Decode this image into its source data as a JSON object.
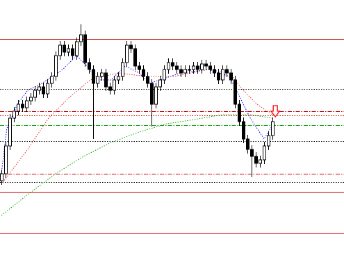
{
  "chart_data": {
    "type": "candlestick",
    "xlim": [
      -0.33,
      82.17
    ],
    "ylim": [
      0,
      400
    ],
    "up_color": "#ffffff",
    "down_color": "#000000",
    "wick_color": "#000000",
    "open": [
      140,
      150,
      190,
      230,
      240,
      250,
      245,
      255,
      260,
      270,
      275,
      265,
      280,
      290,
      320,
      335,
      325,
      330,
      320,
      340,
      350,
      310,
      300,
      280,
      290,
      295,
      275,
      270,
      285,
      290,
      310,
      335,
      330,
      305,
      300,
      290,
      280,
      250,
      275,
      285,
      300,
      310,
      305,
      300,
      295,
      300,
      300,
      305,
      300,
      308,
      305,
      300,
      295,
      285,
      300,
      295,
      285,
      250,
      225,
      200,
      185,
      175,
      165,
      170,
      190,
      205
    ],
    "high": [
      156,
      196,
      236,
      246,
      256,
      256,
      261,
      266,
      276,
      281,
      281,
      286,
      296,
      326,
      341,
      341,
      336,
      336,
      346,
      365,
      356,
      316,
      306,
      296,
      301,
      301,
      281,
      291,
      296,
      316,
      341,
      341,
      336,
      311,
      306,
      296,
      286,
      281,
      291,
      306,
      316,
      316,
      311,
      306,
      306,
      306,
      311,
      311,
      314,
      314,
      311,
      306,
      301,
      306,
      306,
      301,
      291,
      256,
      231,
      206,
      191,
      181,
      176,
      196,
      211,
      231
    ],
    "low": [
      134,
      144,
      184,
      224,
      234,
      239,
      239,
      249,
      254,
      264,
      259,
      259,
      274,
      284,
      314,
      319,
      319,
      314,
      314,
      334,
      304,
      294,
      200,
      274,
      284,
      269,
      264,
      264,
      279,
      284,
      304,
      324,
      299,
      294,
      284,
      274,
      218,
      244,
      269,
      279,
      294,
      299,
      294,
      289,
      289,
      294,
      294,
      294,
      294,
      299,
      294,
      289,
      279,
      279,
      289,
      279,
      244,
      219,
      194,
      179,
      145,
      159,
      159,
      164,
      184,
      199
    ],
    "close": [
      150,
      190,
      230,
      240,
      250,
      245,
      255,
      260,
      270,
      275,
      265,
      280,
      290,
      320,
      335,
      325,
      330,
      320,
      340,
      350,
      310,
      300,
      280,
      290,
      295,
      275,
      270,
      285,
      290,
      310,
      335,
      330,
      305,
      300,
      290,
      280,
      250,
      275,
      285,
      300,
      310,
      305,
      300,
      295,
      300,
      300,
      305,
      300,
      308,
      305,
      300,
      295,
      285,
      300,
      295,
      285,
      250,
      225,
      200,
      185,
      175,
      165,
      170,
      190,
      205,
      225
    ],
    "series": [
      {
        "color": "#0000ff",
        "style": "dotted",
        "x": [
          0,
          1.3,
          3.8,
          6.3,
          9.7,
          14.7,
          18,
          20.5,
          23,
          26.3,
          29.7,
          33,
          35.5,
          38,
          43,
          49.7,
          54.7,
          57.2,
          59.7,
          63,
          65
        ],
        "values": [
          150,
          215,
          250,
          270,
          280,
          300,
          320,
          305,
          285,
          285,
          305,
          295,
          280,
          285,
          295,
          300,
          290,
          260,
          230,
          200,
          220
        ]
      },
      {
        "color": "#e03030",
        "style": "dotted",
        "x": [
          0,
          6.3,
          11.3,
          16.3,
          21.3,
          28,
          34.7,
          41.3,
          49.7,
          54.7,
          58,
          61.3,
          65
        ],
        "values": [
          135,
          185,
          230,
          260,
          285,
          295,
          290,
          290,
          300,
          295,
          270,
          250,
          235
        ]
      },
      {
        "color": "#00a000",
        "style": "dotted",
        "x": [
          0,
          6.3,
          13,
          19.7,
          26.3,
          33,
          39.7,
          46.3,
          53,
          59.7,
          65
        ],
        "values": [
          90,
          120,
          150,
          175,
          195,
          210,
          222,
          228,
          235,
          235,
          230
        ]
      }
    ],
    "levels": [
      {
        "value": 344,
        "color": "#c00000",
        "style": "solid"
      },
      {
        "value": 272,
        "color": "#000000",
        "style": "dotted"
      },
      {
        "value": 240,
        "color": "#c00000",
        "style": "dashdot"
      },
      {
        "value": 234,
        "color": "#c00000",
        "style": "dotted"
      },
      {
        "value": 220,
        "color": "#00a000",
        "style": "dashdot"
      },
      {
        "value": 197,
        "color": "#000000",
        "style": "dotted"
      },
      {
        "value": 150,
        "color": "#c00000",
        "style": "dashdot"
      },
      {
        "value": 138,
        "color": "#000000",
        "style": "dotted"
      },
      {
        "value": 124,
        "color": "#c00000",
        "style": "solid"
      },
      {
        "value": 65,
        "color": "#c00000",
        "style": "solid"
      }
    ],
    "signal": {
      "x": 65.7,
      "value": 232,
      "color": "#ff0000"
    }
  }
}
